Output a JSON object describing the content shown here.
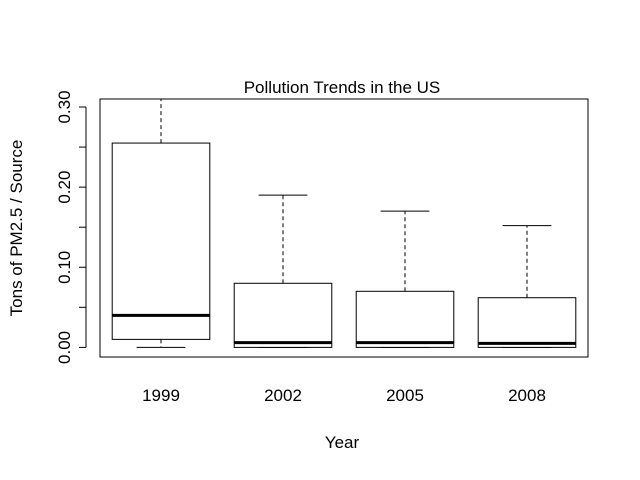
{
  "chart_data": {
    "type": "boxplot",
    "title": "Pollution Trends in the US",
    "xlabel": "Year",
    "ylabel": "Tons of PM2.5 / Source",
    "categories": [
      "1999",
      "2002",
      "2005",
      "2008"
    ],
    "boxes": [
      {
        "category": "1999",
        "whisker_low": 0.0,
        "q1": 0.01,
        "median": 0.04,
        "q3": 0.255,
        "whisker_high": 0.31
      },
      {
        "category": "2002",
        "whisker_low": 0.0,
        "q1": 0.0,
        "median": 0.006,
        "q3": 0.08,
        "whisker_high": 0.19
      },
      {
        "category": "2005",
        "whisker_low": 0.0,
        "q1": 0.0,
        "median": 0.006,
        "q3": 0.07,
        "whisker_high": 0.17
      },
      {
        "category": "2008",
        "whisker_low": 0.0,
        "q1": 0.0,
        "median": 0.005,
        "q3": 0.062,
        "whisker_high": 0.152
      }
    ],
    "y_ticks": [
      0.0,
      0.1,
      0.2,
      0.3
    ],
    "y_tick_labels": [
      "0.00",
      "0.10",
      "0.20",
      "0.30"
    ],
    "ylim": [
      -0.012,
      0.31
    ],
    "grid": false,
    "legend": "none"
  }
}
